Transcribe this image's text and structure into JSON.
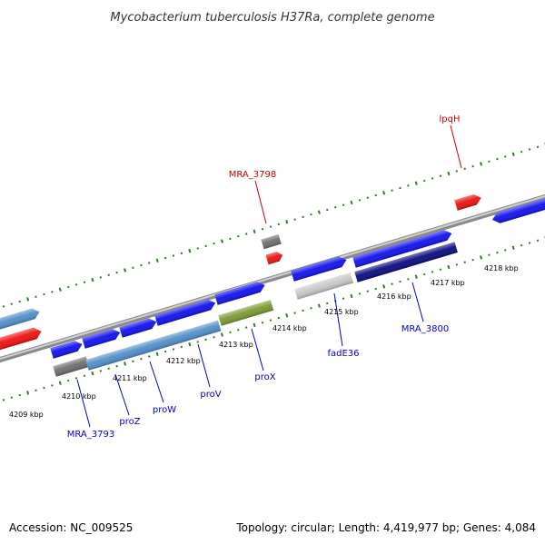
{
  "title": "Mycobacterium tuberculosis H37Ra, complete genome",
  "accession": "Accession: NC_009525",
  "summary": "Topology: circular; Length: 4,419,977 bp; Genes: 4,084",
  "colors": {
    "backbone": "#9e9e9e",
    "tick": "#2e7d1f",
    "forward_gene": "#1010ee",
    "red_gene": "#ee1010",
    "steelblue_gene": "#4f8fca",
    "olive_gene": "#7a9a30",
    "gray_gene": "#6e6e6e",
    "lightgray_gene": "#c8c8c8",
    "navy_gene": "#0a0a80",
    "label_blue": "#0000cc",
    "label_red": "#cc0000"
  },
  "scale_labels": [
    "4209 kbp",
    "4210 kbp",
    "4211 kbp",
    "4212 kbp",
    "4213 kbp",
    "4214 kbp",
    "4215 kbp",
    "4216 kbp",
    "4217 kbp",
    "4218 kbp"
  ],
  "gene_labels": [
    {
      "name": "MRA_3798",
      "color": "red"
    },
    {
      "name": "lpqH",
      "color": "red"
    },
    {
      "name": "MRA_3793",
      "color": "blue"
    },
    {
      "name": "proZ",
      "color": "blue"
    },
    {
      "name": "proW",
      "color": "blue"
    },
    {
      "name": "proV",
      "color": "blue"
    },
    {
      "name": "proX",
      "color": "blue"
    },
    {
      "name": "fadE36",
      "color": "blue"
    },
    {
      "name": "MRA_3800",
      "color": "blue"
    }
  ]
}
